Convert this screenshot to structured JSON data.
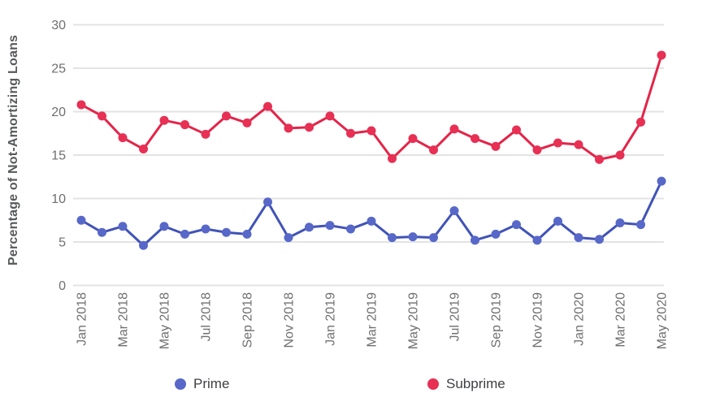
{
  "y_axis": {
    "title": "Percentage of Not-Amortizing Loans",
    "ticks": [
      0,
      5,
      10,
      15,
      20,
      25,
      30
    ]
  },
  "legend": [
    {
      "label": "Prime",
      "color": "#5768c8"
    },
    {
      "label": "Subprime",
      "color": "#e73054"
    }
  ],
  "chart_data": {
    "type": "line",
    "title": "",
    "xlabel": "",
    "ylabel": "Percentage of Not-Amortizing Loans",
    "ylim": [
      0,
      30
    ],
    "grid": "horizontal",
    "legend_position": "bottom",
    "x_tick_interval": 2,
    "x": [
      "Jan 2018",
      "Feb 2018",
      "Mar 2018",
      "Apr 2018",
      "May 2018",
      "Jun 2018",
      "Jul 2018",
      "Aug 2018",
      "Sep 2018",
      "Oct 2018",
      "Nov 2018",
      "Dec 2018",
      "Jan 2019",
      "Feb 2019",
      "Mar 2019",
      "Apr 2019",
      "May 2019",
      "Jun 2019",
      "Jul 2019",
      "Aug 2019",
      "Sep 2019",
      "Oct 2019",
      "Nov 2019",
      "Dec 2019",
      "Jan 2020",
      "Feb 2020",
      "Mar 2020",
      "Apr 2020",
      "May 2020"
    ],
    "series": [
      {
        "name": "Prime",
        "line_color": "#4053b8",
        "point_color": "#5768c8",
        "values": [
          7.5,
          6.1,
          6.8,
          4.6,
          6.8,
          5.9,
          6.5,
          6.1,
          5.9,
          9.6,
          5.5,
          6.7,
          6.9,
          6.5,
          7.4,
          5.5,
          5.6,
          5.5,
          8.6,
          5.2,
          5.9,
          7.0,
          5.2,
          7.4,
          5.5,
          5.3,
          7.2,
          7.0,
          12.0
        ]
      },
      {
        "name": "Subprime",
        "line_color": "#e42449",
        "point_color": "#e73054",
        "values": [
          20.8,
          19.5,
          17.0,
          15.7,
          19.0,
          18.5,
          17.4,
          19.5,
          18.7,
          20.6,
          18.1,
          18.2,
          19.5,
          17.5,
          17.8,
          14.6,
          16.9,
          15.6,
          18.0,
          16.9,
          16.0,
          17.9,
          15.6,
          16.4,
          16.2,
          14.5,
          15.0,
          18.8,
          26.5
        ]
      }
    ],
    "style": {
      "gridline_color": "#e3e3e3",
      "tick_label_color": "#6f6f6f",
      "axis_title_color": "#57585a"
    }
  }
}
